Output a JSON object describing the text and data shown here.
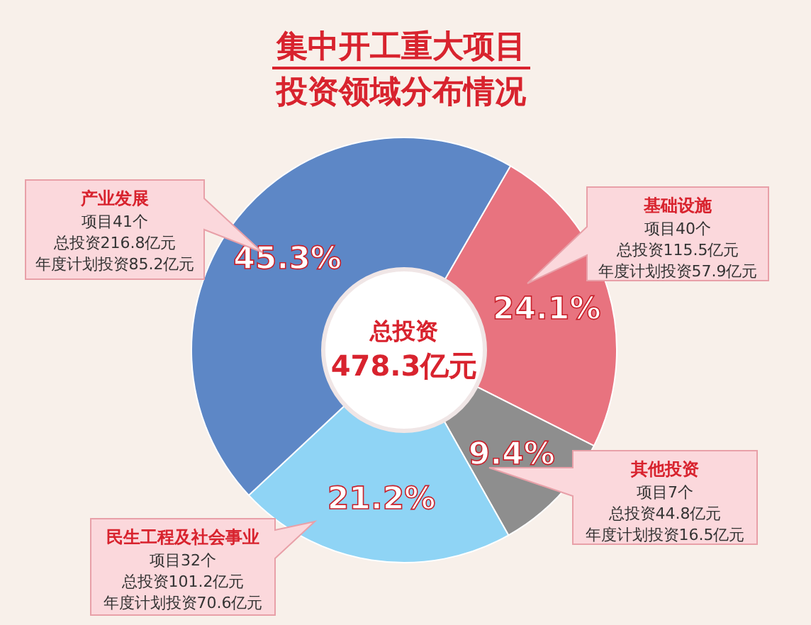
{
  "chart_data": {
    "type": "donut",
    "title": "集中开工重大项目",
    "subtitle": "投资领域分布情况",
    "categories": [
      "基础设施",
      "其他投资",
      "民生工程及社会事业",
      "产业发展"
    ],
    "values": [
      24.1,
      9.4,
      21.2,
      45.3
    ],
    "value_labels": [
      "24.1%",
      "9.4%",
      "21.2%",
      "45.3%"
    ],
    "colors": [
      "#e8737f",
      "#8e8e8e",
      "#8fd4f5",
      "#5d87c6"
    ],
    "annotations": [
      "总投资",
      "478.3亿元",
      "项目40个",
      "总投资115.5亿元",
      "年度计划投资57.9亿元",
      "项目7个",
      "总投资44.8亿元",
      "年度计划投资16.5亿元",
      "项目32个",
      "总投资101.2亿元",
      "年度计划投资70.6亿元",
      "项目41个",
      "总投资216.8亿元",
      "年度计划投资85.2亿元"
    ]
  }
}
